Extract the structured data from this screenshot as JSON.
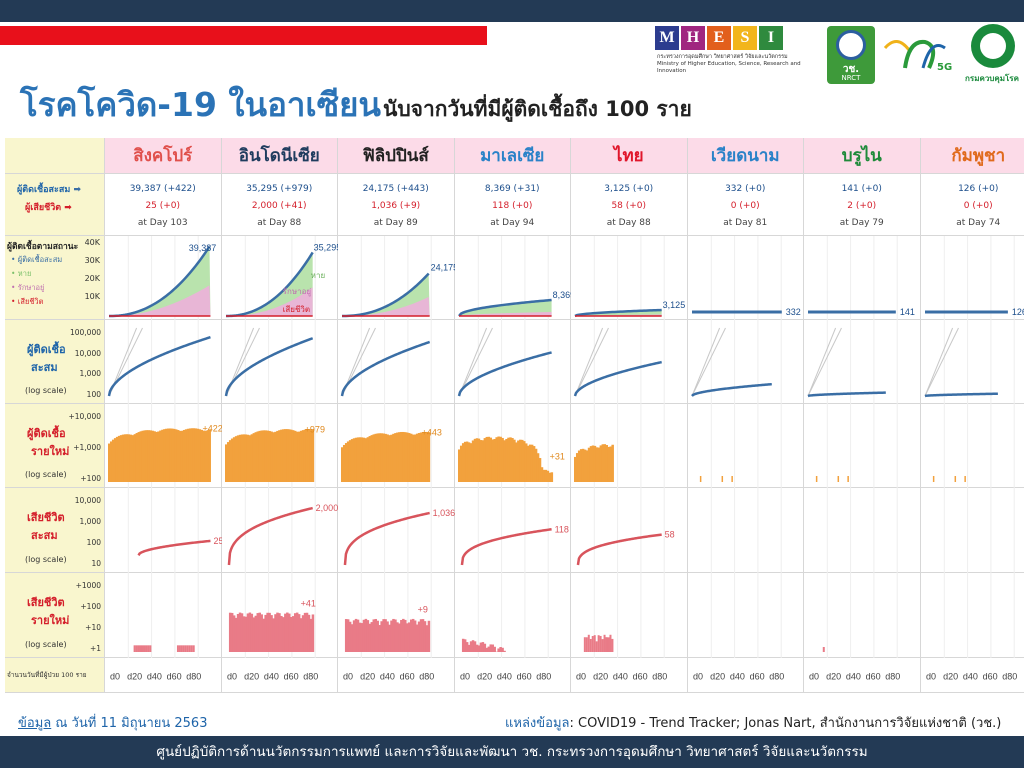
{
  "title": {
    "main": "โรคโควิด-19 ในอาเซียน",
    "sub": "นับจากวันที่มีผู้ติดเชื้อถึง 100 ราย"
  },
  "logos": {
    "mhesi_letters": [
      "M",
      "H",
      "E",
      "S",
      "I"
    ],
    "mhesi_colors": [
      "#2c3c8f",
      "#a02680",
      "#e25f1c",
      "#f2b51c",
      "#2f8a3e"
    ],
    "mhesi_name_th": "กระทรวงการอุดมศึกษา วิทยาศาสตร์ วิจัยและนวัตกรรม",
    "mhesi_name_en": "Ministry of Higher Education, Science, Research and Innovation",
    "nrct_label": "วช.",
    "nrct_en": "NRCT",
    "nrct_5g": "5G",
    "moph_label": "กรมควบคุมโรค"
  },
  "row_labels": {
    "legend_confirmed": "ผู้ติดเชื้อสะสม",
    "legend_deaths": "ผู้เสียชีวิต",
    "status_title": "ผู้ติดเชื้อตามสถานะ",
    "status_items": [
      "ผู้ติดเชื้อสะสม",
      "หาย",
      "รักษาอยู่",
      "เสียชีวิต"
    ],
    "status_ticks": [
      "40K",
      "30K",
      "20K",
      "10K"
    ],
    "cum_cases": [
      "ผู้ติดเชื้อ",
      "สะสม"
    ],
    "cum_cases_ticks": [
      "100,000",
      "10,000",
      "1,000",
      "100"
    ],
    "new_cases": [
      "ผู้ติดเชื้อ",
      "รายใหม่"
    ],
    "new_cases_ticks": [
      "+10,000",
      "+1,000",
      "+100"
    ],
    "cum_deaths": [
      "เสียชีวิต",
      "สะสม"
    ],
    "cum_deaths_ticks": [
      "10,000",
      "1,000",
      "100",
      "10"
    ],
    "new_deaths": [
      "เสียชีวิต",
      "รายใหม่"
    ],
    "new_deaths_ticks": [
      "+1000",
      "+100",
      "+10",
      "+1"
    ],
    "log_scale": "(log scale)",
    "xaxis_caption": "จำนวนวันที่มีผู้ป่วย 100 ราย",
    "x_ticks": [
      "d0",
      "d20",
      "d40",
      "d60",
      "d80"
    ],
    "status_chart_labels": [
      "หาย",
      "รักษาอยู่",
      "เสียชีวิต"
    ]
  },
  "colors": {
    "header_bg": "#fcdbe8",
    "label_bg": "#f9f6ce",
    "confirmed": "#3a6ea5",
    "recovered": "#b9e3ad",
    "active": "#e8b6d6",
    "new_cases": "#f2a13d",
    "deaths": "#d8545c",
    "new_deaths": "#e97b87"
  },
  "chart_data": {
    "type": "line",
    "countries": [
      {
        "name": "สิงคโปร์",
        "color": "#e0504c",
        "confirmed": "39,387 (+422)",
        "deaths": "25 (+0)",
        "day": "at Day 103",
        "total": 39387,
        "total_label": "39,387",
        "new_label": "+422",
        "death_total": 25,
        "death_label": "25",
        "new_death_label": "",
        "days": 103,
        "status_type": "big"
      },
      {
        "name": "อินโดนีเซีย",
        "color": "#1f3c5e",
        "confirmed": "35,295 (+979)",
        "deaths": "2,000 (+41)",
        "day": "at Day 88",
        "total": 35295,
        "total_label": "35,295",
        "new_label": "+979",
        "death_total": 2000,
        "death_label": "2,000",
        "new_death_label": "+41",
        "days": 88,
        "status_type": "big"
      },
      {
        "name": "ฟิลิปปินส์",
        "color": "#222222",
        "confirmed": "24,175 (+443)",
        "deaths": "1,036 (+9)",
        "day": "at Day 89",
        "total": 24175,
        "total_label": "24,175",
        "new_label": "+443",
        "death_total": 1036,
        "death_label": "1,036",
        "new_death_label": "+9",
        "days": 89,
        "status_type": "big"
      },
      {
        "name": "มาเลเซีย",
        "color": "#2a82c8",
        "confirmed": "8,369 (+31)",
        "deaths": "118 (+0)",
        "day": "at Day 94",
        "total": 8369,
        "total_label": "8,369",
        "new_label": "+31",
        "death_total": 118,
        "death_label": "118",
        "new_death_label": "",
        "days": 94,
        "status_type": "mid"
      },
      {
        "name": "ไทย",
        "color": "#e0162b",
        "confirmed": "3,125 (+0)",
        "deaths": "58 (+0)",
        "day": "at Day 88",
        "total": 3125,
        "total_label": "3,125",
        "new_label": "",
        "death_total": 58,
        "death_label": "58",
        "new_death_label": "",
        "days": 88,
        "status_type": "small"
      },
      {
        "name": "เวียดนาม",
        "color": "#2a82c8",
        "confirmed": "332 (+0)",
        "deaths": "0 (+0)",
        "day": "at Day 81",
        "total": 332,
        "total_label": "332",
        "new_label": "",
        "death_total": 0,
        "death_label": "",
        "new_death_label": "",
        "days": 81,
        "status_type": "flat"
      },
      {
        "name": "บรูไน",
        "color": "#1f8a3a",
        "confirmed": "141 (+0)",
        "deaths": "2 (+0)",
        "day": "at Day 79",
        "total": 141,
        "total_label": "141",
        "new_label": "",
        "death_total": 2,
        "death_label": "",
        "new_death_label": "",
        "days": 79,
        "status_type": "flat"
      },
      {
        "name": "กัมพูชา",
        "color": "#e06a1c",
        "confirmed": "126 (+0)",
        "deaths": "0 (+0)",
        "day": "at Day 74",
        "total": 126,
        "total_label": "126",
        "new_label": "",
        "death_total": 0,
        "death_label": "",
        "new_death_label": "",
        "days": 74,
        "status_type": "flat"
      }
    ]
  },
  "footer": {
    "date_label": "ข้อมูล",
    "date_text": " ณ วันที่ 11 มิถุนายน 2563",
    "source_label": "แหล่งข้อมูล",
    "source_text": ": COVID19 - Trend Tracker; Jonas Nart, สำนักงานการวิจัยแห่งชาติ (วช.)",
    "bottom_text": "ศูนย์ปฏิบัติการด้านนวัตกรรมการแพทย์ และการวิจัยและพัฒนา วช.   กระทรวงการอุดมศึกษา วิทยาศาสตร์ วิจัยและนวัตกรรม"
  }
}
